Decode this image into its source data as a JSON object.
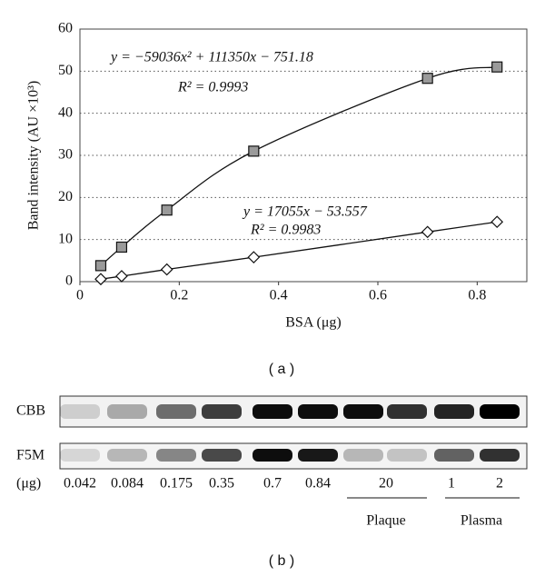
{
  "chart_data": {
    "type": "scatter",
    "x": [
      0.042,
      0.084,
      0.175,
      0.35,
      0.7,
      0.84
    ],
    "series": [
      {
        "marker": "square",
        "color": "#9a9a9a",
        "values": [
          3.8,
          8.2,
          17,
          31,
          48.3,
          51
        ]
      },
      {
        "marker": "diamond",
        "color": "#ffffff",
        "values": [
          0.6,
          1.3,
          2.9,
          5.8,
          11.8,
          14.2
        ]
      }
    ],
    "xlim": [
      0,
      0.9
    ],
    "xticks": [
      0,
      0.2,
      0.4,
      0.6,
      0.8
    ],
    "ylim": [
      0,
      60
    ],
    "yticks": [
      0,
      10,
      20,
      30,
      40,
      50,
      60
    ],
    "grid": true,
    "xlabel": "BSA (μg)",
    "ylabel": "Band intensity (AU ×10³)",
    "annotations": [
      "y = −59036x² + 111350x − 751.18",
      "R² = 0.9993",
      "y = 17055x − 53.557",
      "R² = 0.9983"
    ],
    "panel": "( a )"
  },
  "gel": {
    "rows": [
      "CBB",
      "F5M"
    ],
    "unit": "(μg)",
    "lanes": [
      "0.042",
      "0.084",
      "0.175",
      "0.35",
      "0.7",
      "0.84",
      "20",
      "1",
      "2"
    ],
    "groups": [
      "Plaque",
      "Plasma"
    ],
    "panel": "( b )"
  }
}
